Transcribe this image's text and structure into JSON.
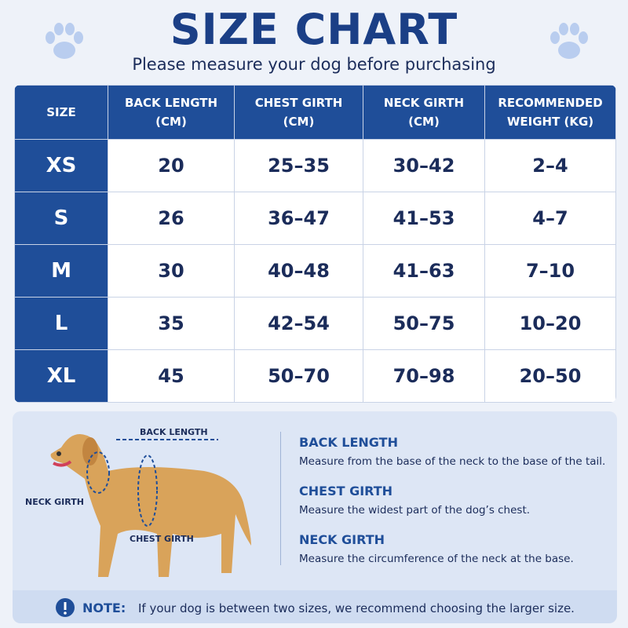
{
  "header": {
    "title": "SIZE CHART",
    "subtitle": "Please measure your dog before purchasing"
  },
  "table": {
    "headers": [
      "SIZE",
      "BACK LENGTH (CM)",
      "CHEST GIRTH (CM)",
      "NECK GIRTH (CM)",
      "RECOMMENDED WEIGHT (KG)"
    ],
    "rows": [
      [
        "XS",
        "20",
        "25–35",
        "30–42",
        "2–4"
      ],
      [
        "S",
        "26",
        "36–47",
        "41–53",
        "4–7"
      ],
      [
        "M",
        "30",
        "40–48",
        "41–63",
        "7–10"
      ],
      [
        "L",
        "35",
        "42–54",
        "50–75",
        "10–20"
      ],
      [
        "XL",
        "45",
        "50–70",
        "70–98",
        "20–50"
      ]
    ]
  },
  "diagram": {
    "back_length": "BACK LENGTH",
    "neck_girth": "NECK GIRTH",
    "chest_girth": "CHEST GIRTH"
  },
  "guide": [
    {
      "title": "BACK LENGTH",
      "text": "Measure from the base of the neck to the base of the tail."
    },
    {
      "title": "CHEST GIRTH",
      "text": "Measure the widest part of the dog’s chest."
    },
    {
      "title": "NECK GIRTH",
      "text": "Measure the circumference of the neck at the base."
    }
  ],
  "note": {
    "label": "NOTE:",
    "text": "If your dog is between two sizes, we recommend choosing the larger size."
  }
}
